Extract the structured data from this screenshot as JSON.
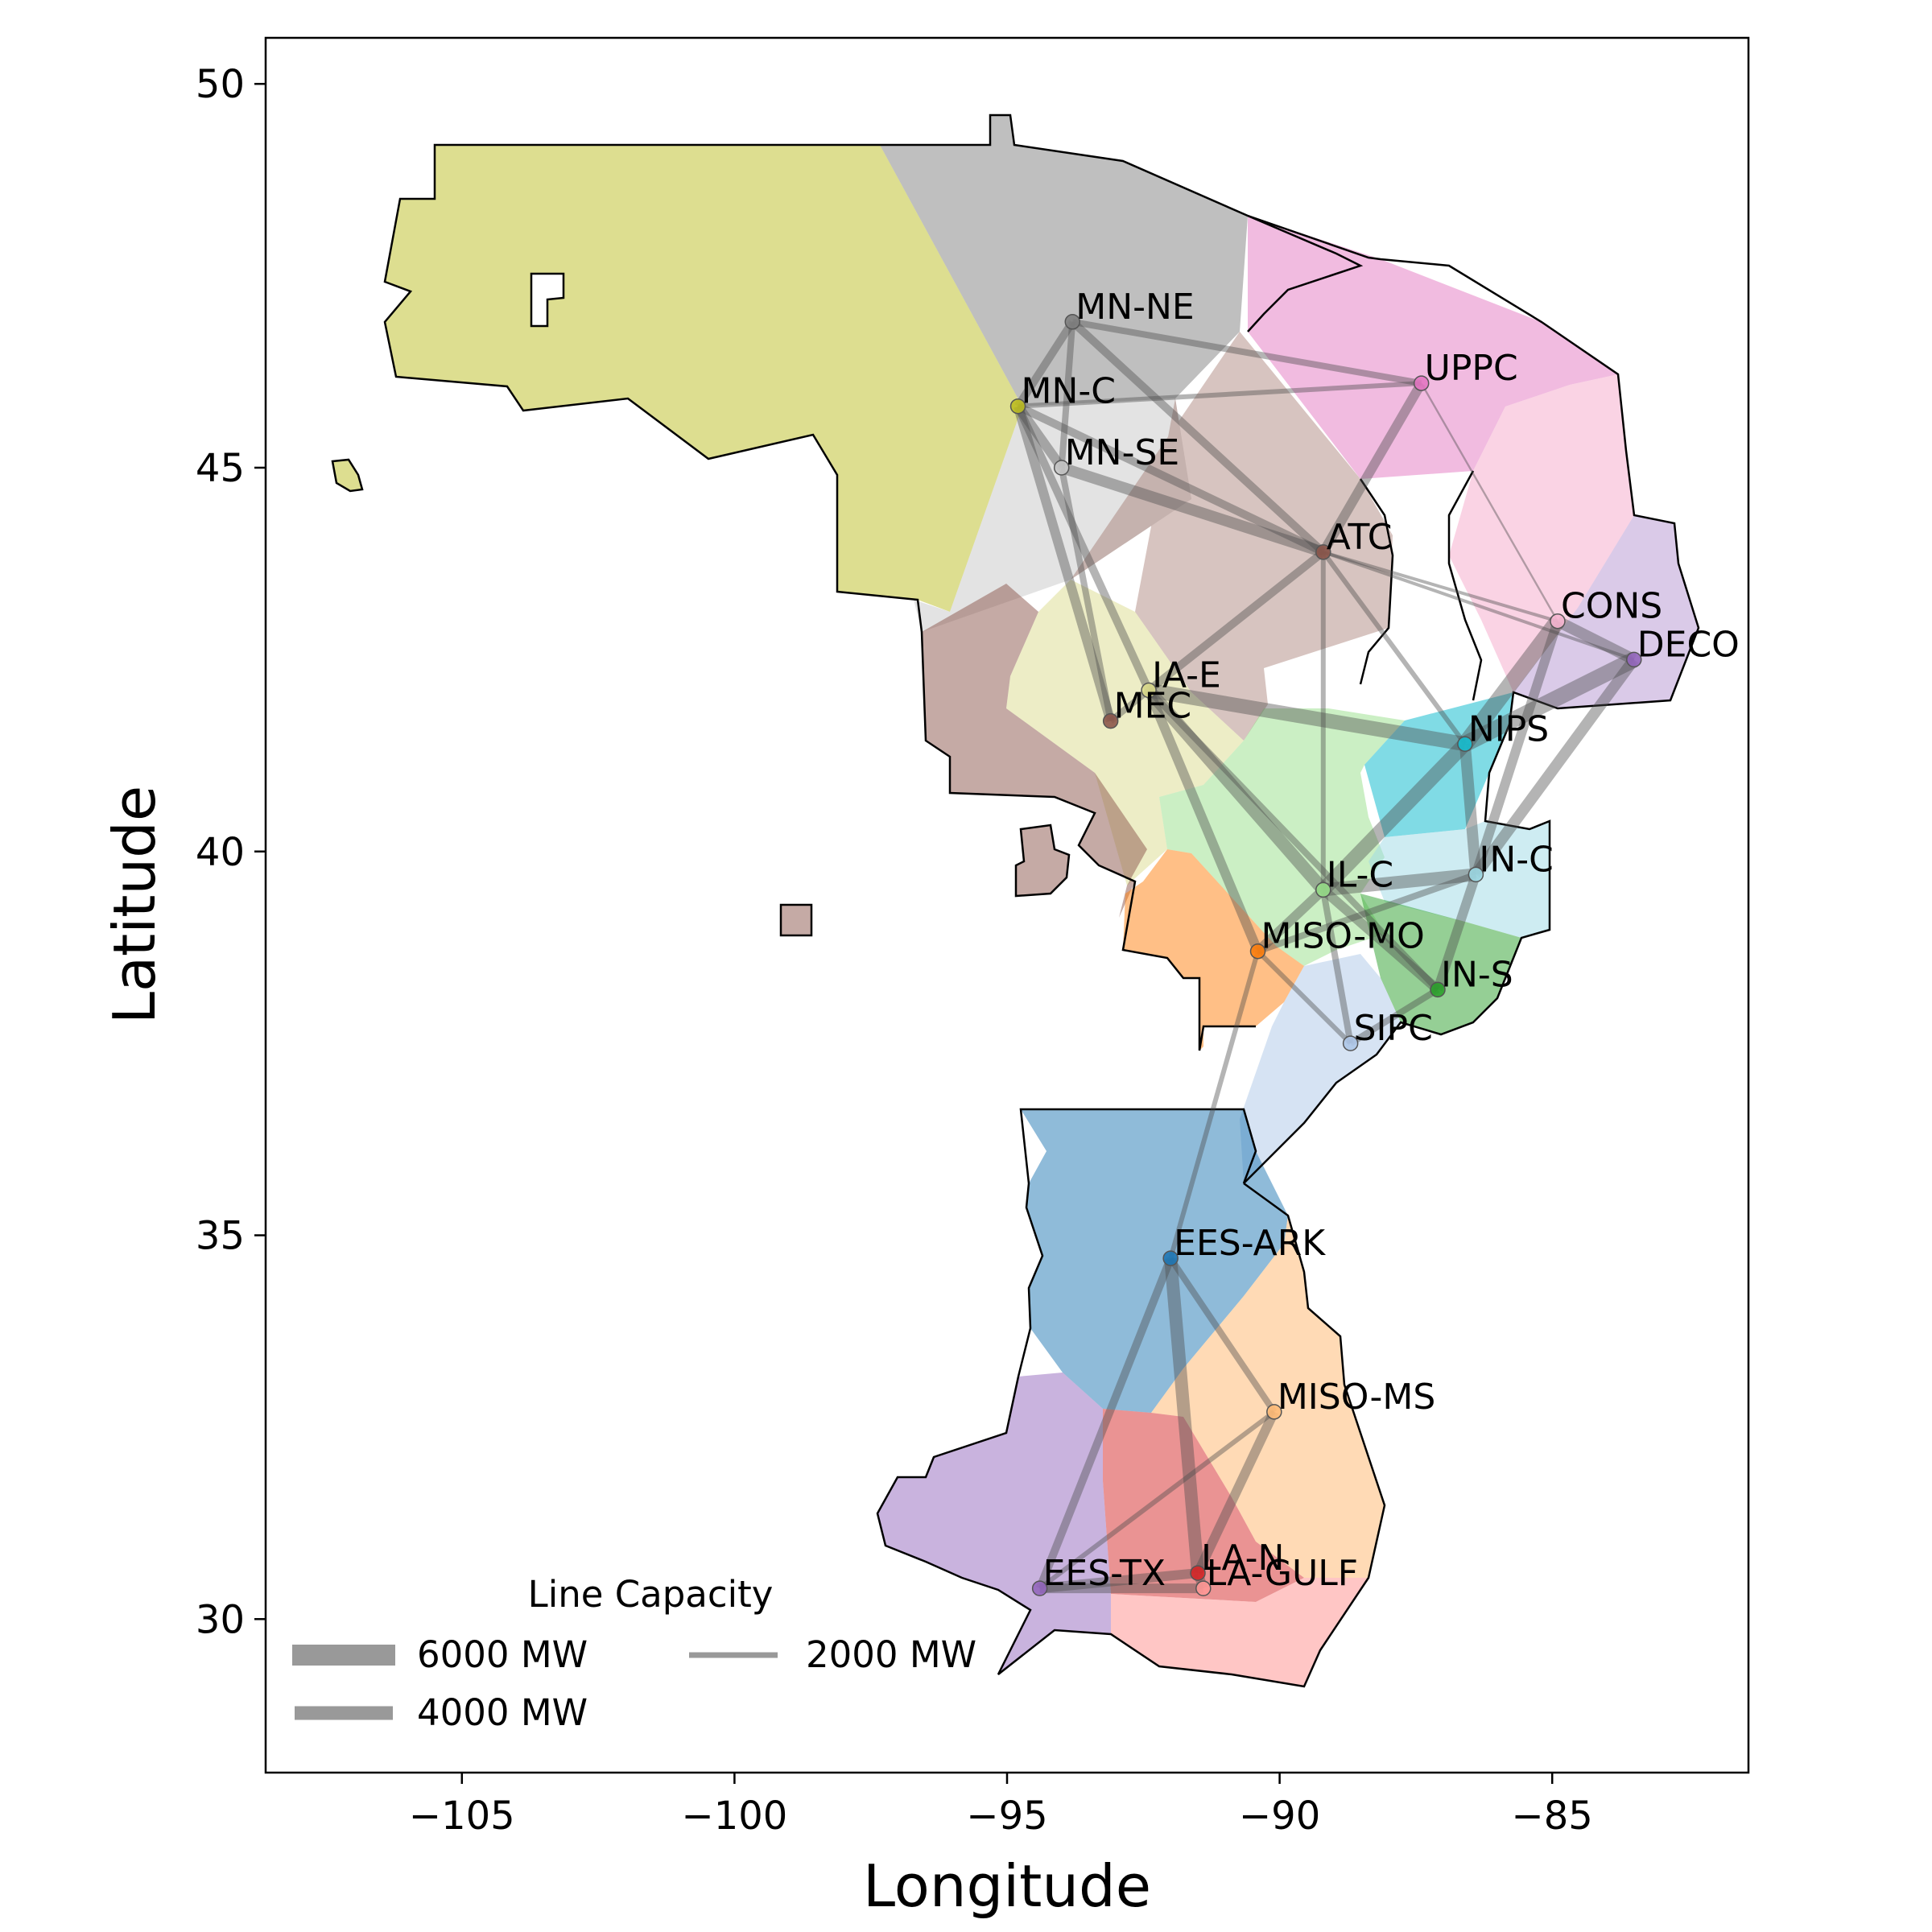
{
  "chart_data": {
    "type": "map",
    "xlabel": "Longitude",
    "ylabel": "Latitude",
    "xlim": [
      -108.6,
      -81.4
    ],
    "ylim": [
      28.0,
      50.6
    ],
    "xticks": [
      -105,
      -100,
      -95,
      -90,
      -85
    ],
    "yticks": [
      30,
      35,
      40,
      45,
      50
    ],
    "xtick_labels": [
      "−105",
      "−100",
      "−95",
      "−90",
      "−85"
    ],
    "ytick_labels": [
      "30",
      "35",
      "40",
      "45",
      "50"
    ],
    "grid": false,
    "nodes": [
      {
        "name": "MN-NE",
        "lon": -93.8,
        "lat": 46.9,
        "color": "#7f7f7f"
      },
      {
        "name": "MN-C",
        "lon": -94.8,
        "lat": 45.8,
        "color": "#bcbd22"
      },
      {
        "name": "MN-SE",
        "lon": -94.0,
        "lat": 45.0,
        "color": "#c7c7c7"
      },
      {
        "name": "UPPC",
        "lon": -87.4,
        "lat": 46.1,
        "color": "#e377c2"
      },
      {
        "name": "ATC",
        "lon": -89.2,
        "lat": 43.9,
        "color": "#8c564b"
      },
      {
        "name": "CONS",
        "lon": -84.9,
        "lat": 43.0,
        "color": "#f7b6d2"
      },
      {
        "name": "DECO",
        "lon": -83.5,
        "lat": 42.5,
        "color": "#9467bd"
      },
      {
        "name": "IA-E",
        "lon": -92.4,
        "lat": 42.1,
        "color": "#dbdb8d"
      },
      {
        "name": "MEC",
        "lon": -93.1,
        "lat": 41.7,
        "color": "#8c564b"
      },
      {
        "name": "NIPS",
        "lon": -86.6,
        "lat": 41.4,
        "color": "#17becf"
      },
      {
        "name": "IL-C",
        "lon": -89.2,
        "lat": 39.5,
        "color": "#98df8a"
      },
      {
        "name": "IN-C",
        "lon": -86.4,
        "lat": 39.7,
        "color": "#9edae5"
      },
      {
        "name": "MISO-MO",
        "lon": -90.4,
        "lat": 38.7,
        "color": "#ff7f0e"
      },
      {
        "name": "IN-S",
        "lon": -87.1,
        "lat": 38.2,
        "color": "#2ca02c"
      },
      {
        "name": "SIPC",
        "lon": -88.7,
        "lat": 37.5,
        "color": "#aec7e8"
      },
      {
        "name": "EES-ARK",
        "lon": -92.0,
        "lat": 34.7,
        "color": "#1f77b4"
      },
      {
        "name": "MISO-MS",
        "lon": -90.1,
        "lat": 32.7,
        "color": "#ffbb78"
      },
      {
        "name": "LA-N",
        "lon": -91.5,
        "lat": 30.6,
        "color": "#d62728"
      },
      {
        "name": "EES-TX",
        "lon": -94.4,
        "lat": 30.4,
        "color": "#9467bd"
      },
      {
        "name": "LA-GULF",
        "lon": -91.4,
        "lat": 30.4,
        "color": "#ff9896"
      }
    ],
    "lines": [
      {
        "from": "MN-NE",
        "to": "MN-C",
        "capacity_mw": 2500
      },
      {
        "from": "MN-NE",
        "to": "MN-SE",
        "capacity_mw": 2000
      },
      {
        "from": "MN-NE",
        "to": "UPPC",
        "capacity_mw": 2000
      },
      {
        "from": "MN-NE",
        "to": "ATC",
        "capacity_mw": 2500
      },
      {
        "from": "MN-C",
        "to": "MN-SE",
        "capacity_mw": 3000
      },
      {
        "from": "MN-C",
        "to": "UPPC",
        "capacity_mw": 1500
      },
      {
        "from": "MN-C",
        "to": "ATC",
        "capacity_mw": 2500
      },
      {
        "from": "MN-C",
        "to": "MEC",
        "capacity_mw": 3000
      },
      {
        "from": "MN-C",
        "to": "IA-E",
        "capacity_mw": 2500
      },
      {
        "from": "MN-SE",
        "to": "ATC",
        "capacity_mw": 3500
      },
      {
        "from": "MN-SE",
        "to": "MEC",
        "capacity_mw": 2000
      },
      {
        "from": "UPPC",
        "to": "ATC",
        "capacity_mw": 3000
      },
      {
        "from": "UPPC",
        "to": "CONS",
        "capacity_mw": 600
      },
      {
        "from": "ATC",
        "to": "IA-E",
        "capacity_mw": 2500
      },
      {
        "from": "ATC",
        "to": "NIPS",
        "capacity_mw": 1500
      },
      {
        "from": "ATC",
        "to": "IL-C",
        "capacity_mw": 1500
      },
      {
        "from": "ATC",
        "to": "DECO",
        "capacity_mw": 1000
      },
      {
        "from": "ATC",
        "to": "CONS",
        "capacity_mw": 1000
      },
      {
        "from": "IA-E",
        "to": "MEC",
        "capacity_mw": 2000
      },
      {
        "from": "IA-E",
        "to": "NIPS",
        "capacity_mw": 4500
      },
      {
        "from": "IA-E",
        "to": "IL-C",
        "capacity_mw": 4000
      },
      {
        "from": "IA-E",
        "to": "MISO-MO",
        "capacity_mw": 3000
      },
      {
        "from": "IA-E",
        "to": "IN-S",
        "capacity_mw": 2000
      },
      {
        "from": "NIPS",
        "to": "CONS",
        "capacity_mw": 5000
      },
      {
        "from": "NIPS",
        "to": "DECO",
        "capacity_mw": 5000
      },
      {
        "from": "NIPS",
        "to": "IL-C",
        "capacity_mw": 4500
      },
      {
        "from": "NIPS",
        "to": "IN-C",
        "capacity_mw": 3500
      },
      {
        "from": "CONS",
        "to": "DECO",
        "capacity_mw": 3500
      },
      {
        "from": "CONS",
        "to": "IN-C",
        "capacity_mw": 3000
      },
      {
        "from": "DECO",
        "to": "IN-C",
        "capacity_mw": 3500
      },
      {
        "from": "IL-C",
        "to": "IN-C",
        "capacity_mw": 4000
      },
      {
        "from": "IL-C",
        "to": "MISO-MO",
        "capacity_mw": 3000
      },
      {
        "from": "IL-C",
        "to": "IN-S",
        "capacity_mw": 3000
      },
      {
        "from": "IL-C",
        "to": "SIPC",
        "capacity_mw": 2000
      },
      {
        "from": "IN-C",
        "to": "IN-S",
        "capacity_mw": 3000
      },
      {
        "from": "IN-C",
        "to": "MISO-MO",
        "capacity_mw": 2000
      },
      {
        "from": "MISO-MO",
        "to": "SIPC",
        "capacity_mw": 1500
      },
      {
        "from": "MISO-MO",
        "to": "EES-ARK",
        "capacity_mw": 1500
      },
      {
        "from": "IN-S",
        "to": "SIPC",
        "capacity_mw": 2000
      },
      {
        "from": "EES-ARK",
        "to": "MISO-MS",
        "capacity_mw": 2000
      },
      {
        "from": "EES-ARK",
        "to": "LA-N",
        "capacity_mw": 4000
      },
      {
        "from": "EES-ARK",
        "to": "EES-TX",
        "capacity_mw": 2500
      },
      {
        "from": "MISO-MS",
        "to": "LA-N",
        "capacity_mw": 3000
      },
      {
        "from": "MISO-MS",
        "to": "EES-TX",
        "capacity_mw": 1500
      },
      {
        "from": "LA-N",
        "to": "LA-GULF",
        "capacity_mw": 3000
      },
      {
        "from": "LA-N",
        "to": "EES-TX",
        "capacity_mw": 3000
      },
      {
        "from": "EES-TX",
        "to": "LA-GULF",
        "capacity_mw": 3000
      }
    ],
    "legend": {
      "title": "Line Capacity",
      "placement": "bottom-left",
      "entries": [
        {
          "label": "6000 MW",
          "capacity_mw": 6000
        },
        {
          "label": "4000 MW",
          "capacity_mw": 4000
        },
        {
          "label": "2000 MW",
          "capacity_mw": 2000
        }
      ]
    }
  }
}
